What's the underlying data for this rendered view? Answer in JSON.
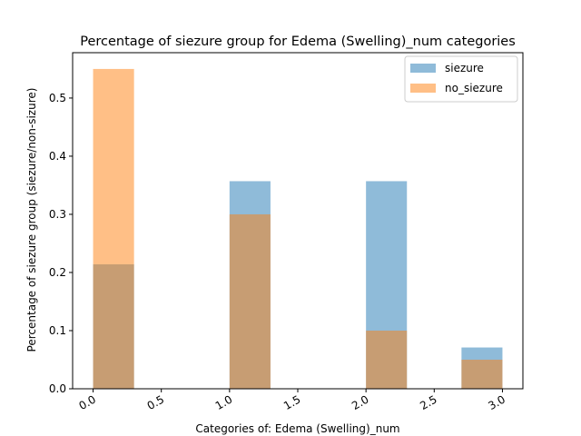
{
  "chart_data": {
    "type": "bar",
    "title": "Percentage of siezure group for Edema (Swelling)_num categories",
    "xlabel": "Categories of: Edema (Swelling)_num",
    "ylabel": "Percentage of siezure group (siezure/non-sizure)",
    "xlim": [
      -0.15,
      3.15
    ],
    "ylim": [
      0,
      0.578
    ],
    "x_ticks": [
      "0.0",
      "0.5",
      "1.0",
      "1.5",
      "2.0",
      "2.5",
      "3.0"
    ],
    "x_tick_values": [
      0,
      0.5,
      1,
      1.5,
      2,
      2.5,
      3
    ],
    "y_ticks": [
      "0.0",
      "0.1",
      "0.2",
      "0.3",
      "0.4",
      "0.5"
    ],
    "y_tick_values": [
      0,
      0.1,
      0.2,
      0.3,
      0.4,
      0.5
    ],
    "bar_start": [
      0,
      1,
      2,
      2.7
    ],
    "bar_width": 0.3,
    "series": [
      {
        "name": "siezure",
        "color": "#1f77b4",
        "alpha": 0.5,
        "values": [
          0.214,
          0.357,
          0.357,
          0.071
        ]
      },
      {
        "name": "no_siezure",
        "color": "#ff7f0e",
        "alpha": 0.5,
        "values": [
          0.55,
          0.3,
          0.1,
          0.05
        ]
      }
    ],
    "legend": "top-right",
    "grid": false
  }
}
